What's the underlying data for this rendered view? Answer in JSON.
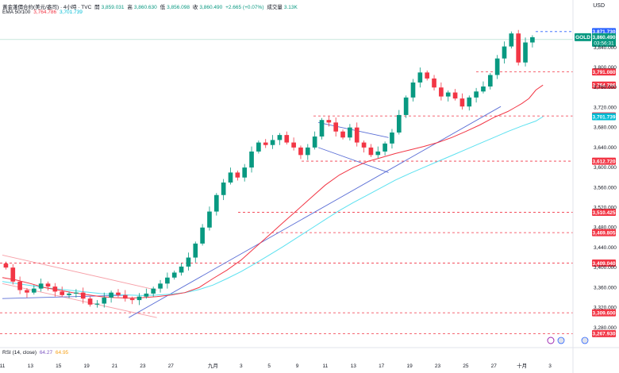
{
  "header": {
    "title": "黃金蓬價合約(美元/盎司) · 4小時 · TVC",
    "open_label": "開",
    "open": "3,859.031",
    "high_label": "高",
    "high": "3,860.630",
    "low_label": "低",
    "low": "3,856.098",
    "close_label": "收",
    "close": "3,860.490",
    "change": "+2.665 (+0.07%)",
    "volume_label": "成交量",
    "volume": "3.13K"
  },
  "ema_legend": {
    "label": "EMA 50/100",
    "ema50": "3,764.786",
    "ema100": "3,701.739"
  },
  "rsi_legend": {
    "label": "RSI (14, close)",
    "v1": "64.27",
    "v2": "64.95"
  },
  "currency": "USD",
  "colors": {
    "up": "#089981",
    "down": "#f23645",
    "ema50": "#f23645",
    "ema100": "#5ce1f0",
    "trend": "#5b6fd6",
    "level": "#f23645",
    "channel_red": "#f7a0a8",
    "channel_blue": "#5b6fd6"
  },
  "chart_data": {
    "type": "candlestick",
    "symbol": "GOLD",
    "interval": "4H",
    "ylim": [
      3240,
      3900
    ],
    "y_ticks": [
      3280,
      3320,
      3360,
      3400,
      3440,
      3480,
      3520,
      3560,
      3600,
      3640,
      3680,
      3720,
      3760,
      3800,
      3840
    ],
    "y_tick_labels": [
      "3,280.000",
      "3,320.000",
      "3,360.000",
      "3,400.000",
      "3,440.000",
      "3,480.000",
      "3,520.000",
      "3,560.000",
      "3,600.000",
      "3,640.000",
      "3,680.000",
      "3,720.000",
      "3,760.000",
      "3,800.000",
      "3,840.000"
    ],
    "x_ticks": [
      {
        "t": 0,
        "label": "11"
      },
      {
        "t": 4,
        "label": "13"
      },
      {
        "t": 8,
        "label": "15"
      },
      {
        "t": 12,
        "label": "19"
      },
      {
        "t": 16,
        "label": "21"
      },
      {
        "t": 20,
        "label": "23"
      },
      {
        "t": 24,
        "label": "27"
      },
      {
        "t": 30,
        "label": "九月"
      },
      {
        "t": 34,
        "label": "3"
      },
      {
        "t": 38,
        "label": "5"
      },
      {
        "t": 42,
        "label": "9"
      },
      {
        "t": 46,
        "label": "11"
      },
      {
        "t": 50,
        "label": "13"
      },
      {
        "t": 54,
        "label": "17"
      },
      {
        "t": 58,
        "label": "19"
      },
      {
        "t": 62,
        "label": "23"
      },
      {
        "t": 66,
        "label": "25"
      },
      {
        "t": 70,
        "label": "27"
      },
      {
        "t": 74,
        "label": "十月"
      },
      {
        "t": 78,
        "label": "3"
      }
    ],
    "closes": [
      3400,
      3372,
      3355,
      3350,
      3358,
      3368,
      3362,
      3352,
      3345,
      3348,
      3350,
      3338,
      3326,
      3328,
      3340,
      3350,
      3345,
      3338,
      3335,
      3342,
      3348,
      3358,
      3368,
      3380,
      3390,
      3402,
      3420,
      3448,
      3480,
      3512,
      3545,
      3570,
      3590,
      3580,
      3600,
      3632,
      3650,
      3645,
      3655,
      3665,
      3650,
      3640,
      3625,
      3640,
      3662,
      3695,
      3690,
      3672,
      3660,
      3680,
      3650,
      3640,
      3625,
      3632,
      3648,
      3670,
      3705,
      3740,
      3770,
      3790,
      3778,
      3760,
      3742,
      3750,
      3738,
      3722,
      3740,
      3752,
      3762,
      3785,
      3818,
      3842,
      3868,
      3810,
      3850,
      3860.49
    ],
    "ema50": [
      3380,
      3375,
      3368,
      3360,
      3355,
      3350,
      3346,
      3342,
      3340,
      3339,
      3340,
      3342,
      3345,
      3350,
      3360,
      3378,
      3395,
      3415,
      3440,
      3465,
      3490,
      3515,
      3540,
      3565,
      3585,
      3600,
      3612,
      3620,
      3628,
      3635,
      3642,
      3650,
      3660,
      3672,
      3685,
      3700,
      3712,
      3720,
      3728,
      3738,
      3755,
      3764.786
    ],
    "ema50_t": [
      0,
      2,
      4,
      6,
      8,
      10,
      12,
      14,
      16,
      18,
      20,
      22,
      24,
      26,
      28,
      30,
      32,
      34,
      36,
      38,
      40,
      42,
      44,
      46,
      48,
      50,
      52,
      54,
      56,
      58,
      60,
      62,
      64,
      66,
      68,
      70,
      72,
      73,
      74,
      75,
      76,
      77
    ],
    "ema100": [
      3372,
      3368,
      3364,
      3360,
      3357,
      3354,
      3351,
      3348,
      3346,
      3345,
      3344,
      3345,
      3347,
      3350,
      3356,
      3365,
      3378,
      3392,
      3408,
      3425,
      3442,
      3460,
      3478,
      3496,
      3514,
      3530,
      3545,
      3560,
      3575,
      3588,
      3600,
      3612,
      3624,
      3636,
      3648,
      3660,
      3672,
      3683,
      3693,
      3701.739
    ],
    "ema100_t": [
      0,
      2,
      4,
      6,
      8,
      10,
      12,
      14,
      16,
      18,
      20,
      22,
      24,
      26,
      28,
      30,
      32,
      34,
      36,
      38,
      40,
      42,
      44,
      46,
      48,
      50,
      52,
      54,
      56,
      58,
      60,
      62,
      64,
      66,
      68,
      70,
      72,
      74,
      76,
      77
    ],
    "levels": [
      {
        "value": 3871.73,
        "label": "3,871.730",
        "bg": "#2962ff"
      },
      {
        "value": 3791.08,
        "label": "3,791.080",
        "bg": "#f23645"
      },
      {
        "value": 3764.786,
        "label": "3,764.786",
        "bg": "#f23645"
      },
      {
        "value": 3703.13,
        "label": "3,703.130",
        "bg": "#f23645"
      },
      {
        "value": 3701.739,
        "label": "3,701.739",
        "bg": "#00bcd4"
      },
      {
        "value": 3612.72,
        "label": "3,612.720",
        "bg": "#f23645"
      },
      {
        "value": 3510.425,
        "label": "3,510.425",
        "bg": "#f23645"
      },
      {
        "value": 3469.805,
        "label": "3,469.805",
        "bg": "#f23645"
      },
      {
        "value": 3409.04,
        "label": "3,409.040",
        "bg": "#f23645"
      },
      {
        "value": 3309.6,
        "label": "3,309.600",
        "bg": "#f23645"
      },
      {
        "value": 3267.93,
        "label": "3,267.930",
        "bg": "#f23645"
      }
    ],
    "last_price": {
      "symbol_label": "GOLD",
      "price": "3,860.490",
      "countdown": "03:56:31"
    }
  }
}
